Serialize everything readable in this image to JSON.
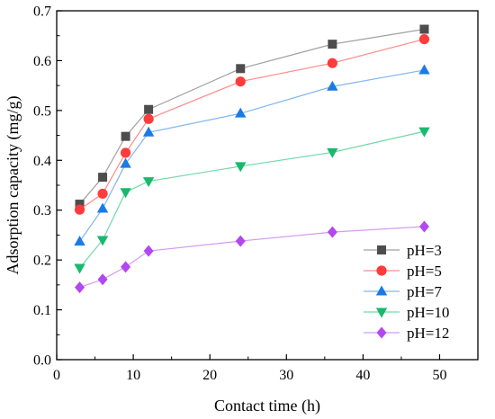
{
  "chart_data": {
    "type": "line",
    "xlabel": "Contact time (h)",
    "ylabel": "Adsorption capacity (mg/g)",
    "xlim": [
      0,
      55
    ],
    "ylim": [
      0,
      0.7
    ],
    "xticks": [
      "0",
      "10",
      "20",
      "30",
      "40",
      "50"
    ],
    "yticks": [
      "0.0",
      "0.1",
      "0.2",
      "0.3",
      "0.4",
      "0.5",
      "0.6",
      "0.7"
    ],
    "grid": false,
    "legend_position": "bottom-right",
    "x": [
      3,
      6,
      9,
      12,
      24,
      36,
      48
    ],
    "series": [
      {
        "name": "pH=3",
        "color": "#808080",
        "marker": "square",
        "values": [
          0.312,
          0.366,
          0.448,
          0.502,
          0.584,
          0.633,
          0.663
        ]
      },
      {
        "name": "pH=5",
        "color": "#ff3b3b",
        "marker": "circle",
        "values": [
          0.301,
          0.333,
          0.415,
          0.483,
          0.558,
          0.595,
          0.643
        ]
      },
      {
        "name": "pH=7",
        "color": "#1f7fe0",
        "marker": "triangle-up",
        "values": [
          0.237,
          0.303,
          0.393,
          0.456,
          0.494,
          0.548,
          0.581
        ]
      },
      {
        "name": "pH=10",
        "color": "#1fc07a",
        "marker": "triangle-down",
        "values": [
          0.184,
          0.24,
          0.336,
          0.358,
          0.388,
          0.416,
          0.458
        ]
      },
      {
        "name": "pH=12",
        "color": "#b44cf0",
        "marker": "diamond",
        "values": [
          0.145,
          0.161,
          0.186,
          0.218,
          0.238,
          0.256,
          0.267
        ]
      }
    ]
  },
  "colors": {
    "pH3_marker": "#4d4d4d",
    "pH3_line": "#a0a0a0",
    "pH5_marker": "#ff3b3b",
    "pH5_line": "#ff8a8a",
    "pH7_marker": "#1a7be6",
    "pH7_line": "#7fb6ee",
    "pH10_marker": "#18b96e",
    "pH10_line": "#6fd9a5",
    "pH12_marker": "#b347f0",
    "pH12_line": "#d49af5"
  }
}
